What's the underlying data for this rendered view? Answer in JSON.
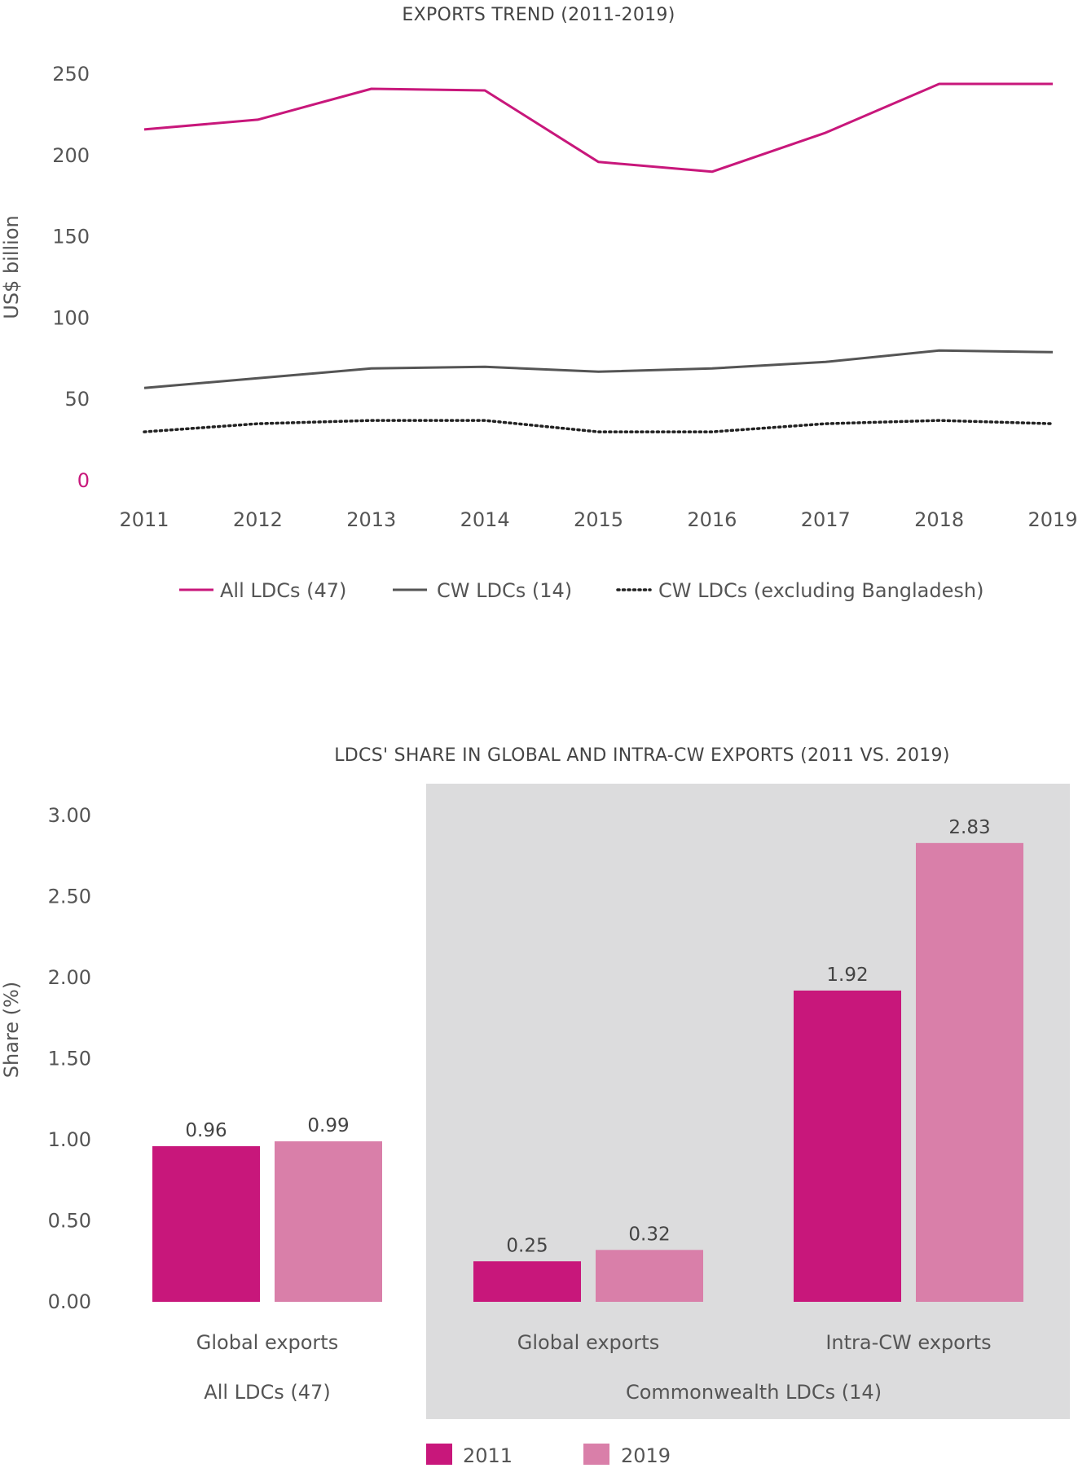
{
  "chart_data": [
    {
      "type": "line",
      "title": "EXPORTS TREND (2011-2019)",
      "ylabel": "US$ billion",
      "xlabel": "",
      "ylim": [
        0,
        250
      ],
      "yticks": [
        "0",
        "50",
        "100",
        "150",
        "200",
        "250"
      ],
      "x": [
        "2011",
        "2012",
        "2013",
        "2014",
        "2015",
        "2016",
        "2017",
        "2018",
        "2019"
      ],
      "series": [
        {
          "name": "All LDCs (47)",
          "color": "#c8177b",
          "style": "solid",
          "values": [
            216,
            222,
            241,
            240,
            196,
            190,
            214,
            244,
            244
          ]
        },
        {
          "name": "CW LDCs (14)",
          "color": "#555555",
          "style": "solid",
          "values": [
            57,
            63,
            69,
            70,
            67,
            69,
            73,
            80,
            79
          ]
        },
        {
          "name": "CW LDCs (excluding Bangladesh)",
          "color": "#222222",
          "style": "dotted",
          "values": [
            30,
            35,
            37,
            37,
            30,
            30,
            35,
            37,
            35
          ]
        }
      ],
      "grid": false,
      "legend_position": "bottom"
    },
    {
      "type": "bar",
      "title": "LDCS' SHARE IN GLOBAL AND INTRA-CW EXPORTS (2011 VS. 2019)",
      "ylabel": "Share (%)",
      "xlabel": "",
      "ylim": [
        0,
        3
      ],
      "yticks": [
        "0.00",
        "0.50",
        "1.00",
        "1.50",
        "2.00",
        "2.50",
        "3.00"
      ],
      "categories": [
        "Global exports",
        "Global exports",
        "Intra-CW exports"
      ],
      "groups": [
        {
          "label": "All LDCs (47)",
          "categories": [
            "Global exports"
          ],
          "highlighted": false
        },
        {
          "label": "Commonwealth LDCs (14)",
          "categories": [
            "Global exports",
            "Intra-CW exports"
          ],
          "highlighted": true
        }
      ],
      "series": [
        {
          "name": "2011",
          "color": "#c8177b",
          "values": [
            0.96,
            0.25,
            1.92
          ],
          "labels": [
            "0.96",
            "0.25",
            "1.92"
          ]
        },
        {
          "name": "2019",
          "color": "#d97fa9",
          "values": [
            0.99,
            0.32,
            2.83
          ],
          "labels": [
            "0.99",
            "0.32",
            "2.83"
          ]
        }
      ],
      "highlight_color": "#dcdcdd",
      "grid": false,
      "legend_position": "bottom"
    }
  ]
}
